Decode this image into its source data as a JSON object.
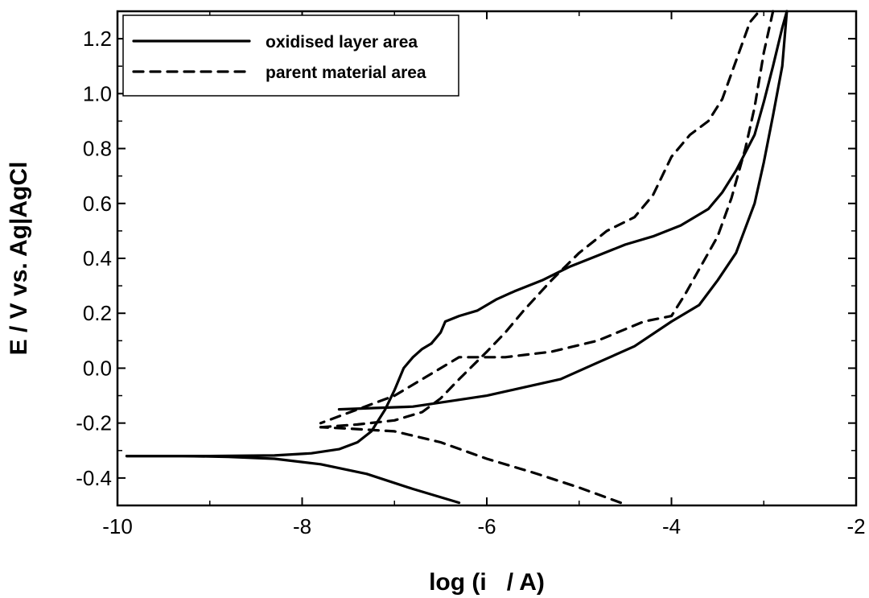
{
  "chart_data": {
    "type": "line",
    "title": "",
    "xlabel": "log (i   / A)",
    "ylabel": "E / V vs. Ag|AgCl",
    "xlim": [
      -10,
      -2
    ],
    "ylim": [
      -0.5,
      1.3
    ],
    "x_ticks": [
      -10,
      -8,
      -6,
      -4,
      -2
    ],
    "x_tick_labels": [
      "-10",
      "-8",
      "-6",
      "-4",
      "-2"
    ],
    "y_ticks": [
      -0.4,
      -0.2,
      0.0,
      0.2,
      0.4,
      0.6,
      0.8,
      1.0,
      1.2
    ],
    "y_tick_labels": [
      "-0.4",
      "-0.2",
      "0.0",
      "0.2",
      "0.4",
      "0.6",
      "0.8",
      "1.0",
      "1.2"
    ],
    "grid": false,
    "legend_position": "top-left",
    "series": [
      {
        "name": "oxidised layer area",
        "style": "solid",
        "color": "#000000",
        "segments": [
          {
            "x": [
              -6.3,
              -6.8,
              -7.3,
              -7.8,
              -8.3,
              -8.8,
              -9.3,
              -9.9
            ],
            "y": [
              -0.49,
              -0.44,
              -0.385,
              -0.35,
              -0.33,
              -0.323,
              -0.32,
              -0.32
            ]
          },
          {
            "x": [
              -9.9,
              -9.0,
              -8.3,
              -7.9,
              -7.6,
              -7.4,
              -7.25,
              -7.1,
              -7.0,
              -6.9,
              -6.8,
              -6.7,
              -6.6
            ],
            "y": [
              -0.32,
              -0.32,
              -0.318,
              -0.31,
              -0.295,
              -0.27,
              -0.23,
              -0.15,
              -0.08,
              0.0,
              0.04,
              0.07,
              0.09
            ]
          },
          {
            "x": [
              -6.6,
              -6.5,
              -6.45,
              -6.3,
              -6.1,
              -5.9,
              -5.7,
              -5.4,
              -5.1,
              -4.8,
              -4.5,
              -4.2,
              -3.9,
              -3.6,
              -3.45,
              -3.3
            ],
            "y": [
              0.09,
              0.13,
              0.17,
              0.19,
              0.21,
              0.25,
              0.28,
              0.32,
              0.37,
              0.41,
              0.45,
              0.48,
              0.52,
              0.58,
              0.64,
              0.72
            ]
          },
          {
            "x": [
              -3.3,
              -3.1,
              -3.0,
              -2.9,
              -2.8,
              -2.75
            ],
            "y": [
              0.72,
              0.85,
              0.97,
              1.1,
              1.24,
              1.3
            ]
          },
          {
            "x": [
              -2.75,
              -2.8,
              -2.9,
              -3.0,
              -3.1,
              -3.3,
              -3.5,
              -3.7,
              -4.0,
              -4.4,
              -4.8,
              -5.2,
              -5.6,
              -6.0,
              -6.4,
              -6.8,
              -7.2,
              -7.6
            ],
            "y": [
              1.3,
              1.1,
              0.92,
              0.75,
              0.6,
              0.42,
              0.32,
              0.23,
              0.17,
              0.08,
              0.02,
              -0.04,
              -0.07,
              -0.1,
              -0.12,
              -0.14,
              -0.145,
              -0.15
            ]
          }
        ]
      },
      {
        "name": "parent material area",
        "style": "dashed",
        "color": "#000000",
        "segments": [
          {
            "x": [
              -4.55,
              -5.0,
              -5.5,
              -6.0,
              -6.5,
              -7.0,
              -7.5,
              -7.8
            ],
            "y": [
              -0.49,
              -0.435,
              -0.38,
              -0.33,
              -0.27,
              -0.23,
              -0.22,
              -0.215
            ]
          },
          {
            "x": [
              -7.8,
              -7.4,
              -7.0,
              -6.7,
              -6.5,
              -6.3,
              -6.0,
              -5.8,
              -5.6,
              -5.3,
              -5.0,
              -4.7,
              -4.4,
              -4.2,
              -4.0,
              -3.8,
              -3.6,
              -3.45,
              -3.3,
              -3.15,
              -3.05
            ],
            "y": [
              -0.215,
              -0.205,
              -0.19,
              -0.16,
              -0.11,
              -0.04,
              0.06,
              0.13,
              0.21,
              0.32,
              0.42,
              0.5,
              0.55,
              0.63,
              0.77,
              0.85,
              0.9,
              0.98,
              1.12,
              1.26,
              1.3
            ]
          },
          {
            "x": [
              -2.9,
              -3.0,
              -3.1,
              -3.2,
              -3.35,
              -3.5,
              -3.7,
              -3.85,
              -4.0,
              -4.3,
              -4.8,
              -5.3,
              -5.8,
              -6.3,
              -7.0,
              -7.8
            ],
            "y": [
              1.3,
              1.15,
              0.95,
              0.8,
              0.62,
              0.48,
              0.36,
              0.27,
              0.19,
              0.17,
              0.1,
              0.06,
              0.04,
              0.04,
              -0.1,
              -0.2
            ]
          }
        ]
      }
    ]
  }
}
